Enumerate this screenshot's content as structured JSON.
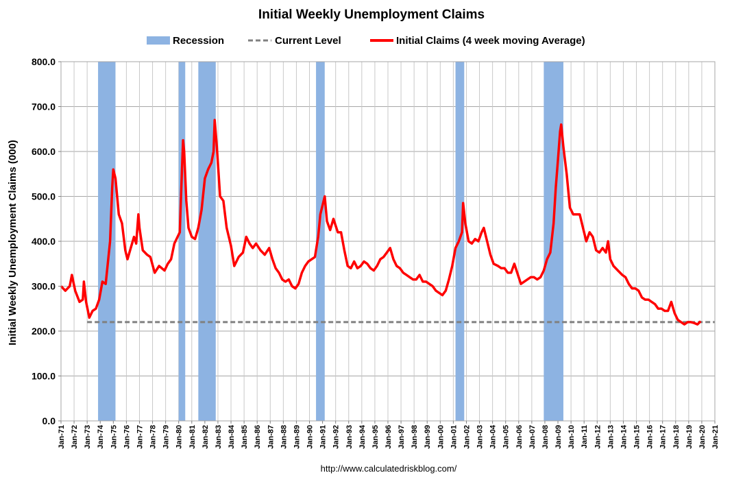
{
  "chart_data": {
    "type": "line",
    "title": "Initial Weekly Unemployment Claims",
    "ylabel": "Initial Weekly Unemployment Claims (000)",
    "ylim": [
      0,
      800
    ],
    "xlim": [
      "1971-01",
      "2021-01"
    ],
    "grid": true,
    "legend_position": "top",
    "yticks": [
      "0.0",
      "100.0",
      "200.0",
      "300.0",
      "400.0",
      "500.0",
      "600.0",
      "700.0",
      "800.0"
    ],
    "xticks": [
      "Jan-71",
      "Jan-72",
      "Jan-73",
      "Jan-74",
      "Jan-75",
      "Jan-76",
      "Jan-77",
      "Jan-78",
      "Jan-79",
      "Jan-80",
      "Jan-81",
      "Jan-82",
      "Jan-83",
      "Jan-84",
      "Jan-85",
      "Jan-86",
      "Jan-87",
      "Jan-88",
      "Jan-89",
      "Jan-90",
      "Jan-91",
      "Jan-92",
      "Jan-93",
      "Jan-94",
      "Jan-95",
      "Jan-96",
      "Jan-97",
      "Jan-98",
      "Jan-99",
      "Jan-00",
      "Jan-01",
      "Jan-02",
      "Jan-03",
      "Jan-04",
      "Jan-05",
      "Jan-06",
      "Jan-07",
      "Jan-08",
      "Jan-09",
      "Jan-10",
      "Jan-11",
      "Jan-12",
      "Jan-13",
      "Jan-14",
      "Jan-15",
      "Jan-16",
      "Jan-17",
      "Jan-18",
      "Jan-19",
      "Jan-20",
      "Jan-21"
    ],
    "legend": [
      {
        "name": "Recession",
        "style": "band",
        "color": "#8db3e2"
      },
      {
        "name": "Current Level",
        "style": "dashed",
        "color": "#808080"
      },
      {
        "name": "Initial Claims (4 week moving Average)",
        "style": "line",
        "color": "#ff0000"
      }
    ],
    "recessions": [
      [
        "1973-11",
        "1975-03"
      ],
      [
        "1980-01",
        "1980-07"
      ],
      [
        "1981-07",
        "1982-11"
      ],
      [
        "1990-07",
        "1991-03"
      ],
      [
        "2001-03",
        "2001-11"
      ],
      [
        "2007-12",
        "2009-06"
      ]
    ],
    "current_level": 220,
    "series": [
      {
        "name": "Initial Claims (4 week moving Average)",
        "color": "#ff0000",
        "points": [
          [
            "1971-01",
            300
          ],
          [
            "1971-05",
            290
          ],
          [
            "1971-09",
            300
          ],
          [
            "1971-11",
            325
          ],
          [
            "1972-02",
            290
          ],
          [
            "1972-06",
            265
          ],
          [
            "1972-09",
            270
          ],
          [
            "1972-10",
            310
          ],
          [
            "1972-12",
            265
          ],
          [
            "1973-03",
            230
          ],
          [
            "1973-06",
            245
          ],
          [
            "1973-09",
            250
          ],
          [
            "1973-12",
            270
          ],
          [
            "1974-03",
            310
          ],
          [
            "1974-06",
            305
          ],
          [
            "1974-10",
            400
          ],
          [
            "1974-12",
            520
          ],
          [
            "1975-01",
            560
          ],
          [
            "1975-03",
            540
          ],
          [
            "1975-06",
            460
          ],
          [
            "1975-09",
            440
          ],
          [
            "1975-12",
            380
          ],
          [
            "1976-02",
            360
          ],
          [
            "1976-05",
            385
          ],
          [
            "1976-08",
            410
          ],
          [
            "1976-10",
            395
          ],
          [
            "1976-12",
            460
          ],
          [
            "1977-01",
            430
          ],
          [
            "1977-04",
            380
          ],
          [
            "1977-08",
            370
          ],
          [
            "1977-11",
            365
          ],
          [
            "1978-03",
            330
          ],
          [
            "1978-07",
            345
          ],
          [
            "1978-12",
            335
          ],
          [
            "1979-03",
            350
          ],
          [
            "1979-06",
            360
          ],
          [
            "1979-09",
            395
          ],
          [
            "1979-12",
            410
          ],
          [
            "1980-02",
            420
          ],
          [
            "1980-04",
            560
          ],
          [
            "1980-05",
            625
          ],
          [
            "1980-06",
            600
          ],
          [
            "1980-08",
            490
          ],
          [
            "1980-10",
            430
          ],
          [
            "1981-01",
            410
          ],
          [
            "1981-04",
            405
          ],
          [
            "1981-07",
            430
          ],
          [
            "1981-10",
            470
          ],
          [
            "1982-01",
            540
          ],
          [
            "1982-04",
            560
          ],
          [
            "1982-07",
            575
          ],
          [
            "1982-09",
            600
          ],
          [
            "1982-10",
            670
          ],
          [
            "1982-12",
            610
          ],
          [
            "1983-03",
            500
          ],
          [
            "1983-06",
            490
          ],
          [
            "1983-09",
            430
          ],
          [
            "1984-01",
            390
          ],
          [
            "1984-04",
            345
          ],
          [
            "1984-08",
            365
          ],
          [
            "1984-12",
            375
          ],
          [
            "1985-03",
            410
          ],
          [
            "1985-06",
            395
          ],
          [
            "1985-09",
            385
          ],
          [
            "1985-12",
            395
          ],
          [
            "1986-04",
            380
          ],
          [
            "1986-08",
            370
          ],
          [
            "1986-12",
            385
          ],
          [
            "1987-03",
            360
          ],
          [
            "1987-06",
            340
          ],
          [
            "1987-09",
            330
          ],
          [
            "1987-12",
            315
          ],
          [
            "1988-03",
            310
          ],
          [
            "1988-06",
            315
          ],
          [
            "1988-09",
            300
          ],
          [
            "1988-12",
            295
          ],
          [
            "1989-03",
            305
          ],
          [
            "1989-06",
            330
          ],
          [
            "1989-09",
            345
          ],
          [
            "1989-12",
            355
          ],
          [
            "1990-03",
            360
          ],
          [
            "1990-06",
            365
          ],
          [
            "1990-09",
            410
          ],
          [
            "1990-11",
            460
          ],
          [
            "1991-01",
            480
          ],
          [
            "1991-03",
            500
          ],
          [
            "1991-05",
            445
          ],
          [
            "1991-08",
            425
          ],
          [
            "1991-11",
            450
          ],
          [
            "1992-03",
            420
          ],
          [
            "1992-06",
            420
          ],
          [
            "1992-09",
            380
          ],
          [
            "1992-12",
            345
          ],
          [
            "1993-03",
            340
          ],
          [
            "1993-06",
            355
          ],
          [
            "1993-09",
            340
          ],
          [
            "1993-12",
            345
          ],
          [
            "1994-03",
            355
          ],
          [
            "1994-06",
            350
          ],
          [
            "1994-09",
            340
          ],
          [
            "1994-12",
            335
          ],
          [
            "1995-03",
            345
          ],
          [
            "1995-06",
            360
          ],
          [
            "1995-09",
            365
          ],
          [
            "1995-12",
            375
          ],
          [
            "1996-03",
            385
          ],
          [
            "1996-06",
            360
          ],
          [
            "1996-09",
            345
          ],
          [
            "1996-12",
            340
          ],
          [
            "1997-03",
            330
          ],
          [
            "1997-06",
            325
          ],
          [
            "1997-09",
            320
          ],
          [
            "1997-12",
            315
          ],
          [
            "1998-03",
            315
          ],
          [
            "1998-06",
            325
          ],
          [
            "1998-09",
            310
          ],
          [
            "1998-12",
            310
          ],
          [
            "1999-03",
            305
          ],
          [
            "1999-06",
            300
          ],
          [
            "1999-09",
            290
          ],
          [
            "1999-12",
            285
          ],
          [
            "2000-03",
            280
          ],
          [
            "2000-06",
            290
          ],
          [
            "2000-09",
            315
          ],
          [
            "2000-12",
            345
          ],
          [
            "2001-03",
            385
          ],
          [
            "2001-06",
            400
          ],
          [
            "2001-09",
            420
          ],
          [
            "2001-10",
            485
          ],
          [
            "2001-12",
            440
          ],
          [
            "2002-03",
            400
          ],
          [
            "2002-06",
            395
          ],
          [
            "2002-09",
            405
          ],
          [
            "2002-12",
            400
          ],
          [
            "2003-03",
            420
          ],
          [
            "2003-05",
            430
          ],
          [
            "2003-08",
            400
          ],
          [
            "2003-11",
            370
          ],
          [
            "2004-02",
            350
          ],
          [
            "2004-06",
            345
          ],
          [
            "2004-09",
            340
          ],
          [
            "2004-12",
            340
          ],
          [
            "2005-03",
            330
          ],
          [
            "2005-06",
            330
          ],
          [
            "2005-09",
            350
          ],
          [
            "2005-11",
            335
          ],
          [
            "2006-03",
            305
          ],
          [
            "2006-06",
            310
          ],
          [
            "2006-09",
            315
          ],
          [
            "2006-12",
            320
          ],
          [
            "2007-03",
            320
          ],
          [
            "2007-06",
            315
          ],
          [
            "2007-09",
            320
          ],
          [
            "2007-12",
            335
          ],
          [
            "2008-03",
            360
          ],
          [
            "2008-06",
            375
          ],
          [
            "2008-09",
            440
          ],
          [
            "2008-11",
            520
          ],
          [
            "2009-01",
            580
          ],
          [
            "2009-03",
            645
          ],
          [
            "2009-04",
            660
          ],
          [
            "2009-06",
            610
          ],
          [
            "2009-09",
            550
          ],
          [
            "2009-12",
            475
          ],
          [
            "2010-03",
            460
          ],
          [
            "2010-06",
            460
          ],
          [
            "2010-09",
            460
          ],
          [
            "2010-12",
            430
          ],
          [
            "2011-03",
            400
          ],
          [
            "2011-06",
            420
          ],
          [
            "2011-09",
            410
          ],
          [
            "2011-12",
            380
          ],
          [
            "2012-03",
            375
          ],
          [
            "2012-06",
            385
          ],
          [
            "2012-09",
            375
          ],
          [
            "2012-11",
            400
          ],
          [
            "2013-01",
            360
          ],
          [
            "2013-04",
            345
          ],
          [
            "2013-08",
            335
          ],
          [
            "2013-12",
            325
          ],
          [
            "2014-03",
            320
          ],
          [
            "2014-06",
            305
          ],
          [
            "2014-09",
            295
          ],
          [
            "2014-12",
            295
          ],
          [
            "2015-03",
            290
          ],
          [
            "2015-06",
            275
          ],
          [
            "2015-09",
            270
          ],
          [
            "2015-12",
            270
          ],
          [
            "2016-03",
            265
          ],
          [
            "2016-06",
            260
          ],
          [
            "2016-09",
            250
          ],
          [
            "2016-12",
            250
          ],
          [
            "2017-03",
            245
          ],
          [
            "2017-06",
            245
          ],
          [
            "2017-09",
            265
          ],
          [
            "2017-12",
            240
          ],
          [
            "2018-03",
            225
          ],
          [
            "2018-06",
            220
          ],
          [
            "2018-09",
            215
          ],
          [
            "2018-12",
            220
          ],
          [
            "2019-03",
            220
          ],
          [
            "2019-06",
            218
          ],
          [
            "2019-09",
            215
          ],
          [
            "2019-12",
            222
          ]
        ]
      }
    ]
  },
  "footer": {
    "url": "http://www.calculatedriskblog.com/"
  }
}
